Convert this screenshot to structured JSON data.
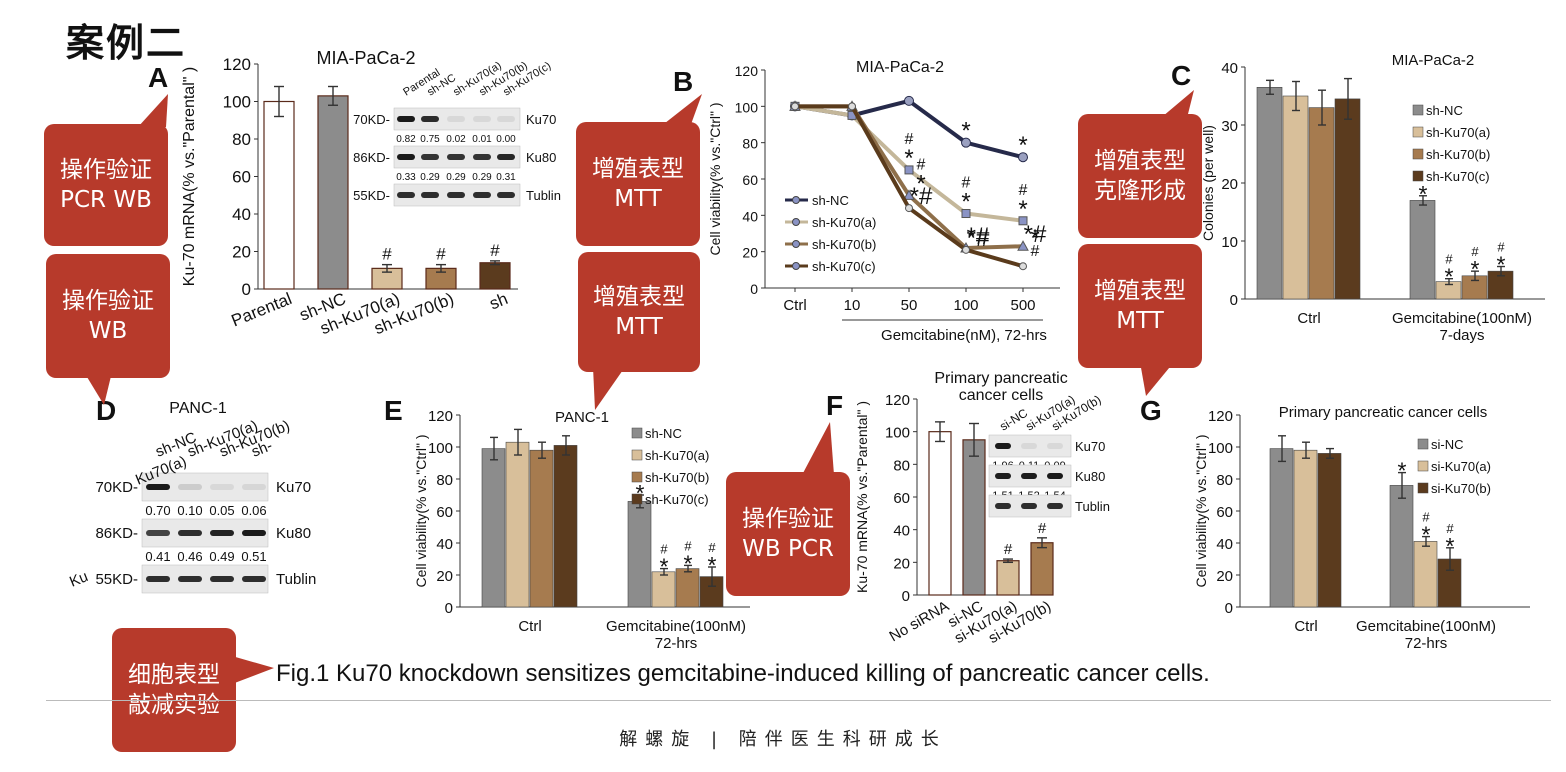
{
  "page_title": "案例二",
  "panel_letters": {
    "a": "A",
    "b": "B",
    "c": "C",
    "d": "D",
    "e": "E",
    "f": "F",
    "g": "G"
  },
  "caption": "Fig.1 Ku70 knockdown sensitizes gemcitabine-induced killing of pancreatic cancer cells.",
  "footer": "解螺旋 | 陪伴医生科研成长",
  "callouts": {
    "validate_pcr_wb": [
      "操作验证",
      "PCR WB"
    ],
    "validate_wb": [
      "操作验证",
      "WB"
    ],
    "prolif_mtt_1": [
      "增殖表型",
      "MTT"
    ],
    "prolif_mtt_2": [
      "增殖表型",
      "MTT"
    ],
    "prolif_colony": [
      "增殖表型",
      "克隆形成"
    ],
    "prolif_mtt_3": [
      "增殖表型",
      "MTT"
    ],
    "validate_wb_pcr": [
      "操作验证",
      "WB PCR"
    ],
    "knockdown": [
      "细胞表型",
      "敲减实验"
    ]
  },
  "colors": {
    "accent": "#b73a2b",
    "parental": "#ffffff",
    "shNC": "#8c8c8c",
    "a": "#d8bf9a",
    "b": "#a67b4f",
    "c": "#5b3b1e",
    "line_nc": "#262a4a",
    "line_a": "#c4b79a",
    "line_b": "#8e6f4a",
    "line_c": "#5a3b1c"
  },
  "wb_a": {
    "lanes": [
      "Parental",
      "sh-NC",
      "sh-Ku70(a)",
      "sh-Ku70(b)",
      "sh-Ku70(c)"
    ],
    "rows": [
      {
        "kd": "70KD-",
        "label": "Ku70",
        "values": [
          "0.82",
          "0.75",
          "0.02",
          "0.01",
          "0.00"
        ]
      },
      {
        "kd": "86KD-",
        "label": "Ku80",
        "values": [
          "0.33",
          "0.29",
          "0.29",
          "0.29",
          "0.31"
        ]
      },
      {
        "kd": "55KD-",
        "label": "Tublin",
        "values": []
      }
    ]
  },
  "wb_d": {
    "title": "PANC-1",
    "lanes": [
      "sh-NC",
      "sh-Ku70(a)",
      "sh-Ku70(b)",
      "sh-"
    ],
    "rows": [
      {
        "kd": "70KD-",
        "label": "Ku70",
        "values": [
          "0.70",
          "0.10",
          "0.05",
          "0.06"
        ]
      },
      {
        "kd": "86KD-",
        "label": "Ku80",
        "values": [
          "0.41",
          "0.46",
          "0.49",
          "0.51"
        ]
      },
      {
        "kd": "55KD-",
        "label": "Tublin",
        "values": []
      }
    ],
    "cut_labels": [
      "Ku70(a)",
      "Ku"
    ]
  },
  "wb_f": {
    "lanes": [
      "si-NC",
      "si-Ku70(a)",
      "si-Ku70(b)"
    ],
    "rows": [
      {
        "kd": "",
        "label": "Ku70",
        "values": [
          "1.96",
          "0.11",
          "0.09"
        ]
      },
      {
        "kd": "",
        "label": "Ku80",
        "values": [
          "1.51",
          "1.52",
          "1.54"
        ]
      },
      {
        "kd": "",
        "label": "Tublin",
        "values": []
      }
    ]
  },
  "chart_data": [
    {
      "id": "A",
      "type": "bar",
      "title": "MIA-PaCa-2",
      "ylabel": "Ku-70 mRNA(% vs.\"Parental\" )",
      "ylim": [
        0,
        120
      ],
      "yticks": [
        0,
        20,
        40,
        60,
        80,
        100,
        120
      ],
      "categories": [
        "Parental",
        "sh-NC",
        "sh-Ku70(a)",
        "sh-Ku70(b)",
        "sh"
      ],
      "values": [
        100,
        103,
        11,
        11,
        14
      ],
      "errors": [
        8,
        5,
        2,
        2,
        1
      ],
      "annotations": [
        "",
        "",
        "#",
        "#",
        "#"
      ]
    },
    {
      "id": "B",
      "type": "line",
      "title": "MIA-PaCa-2",
      "ylabel": "Cell viability(% vs.\"Ctrl\" )",
      "xlabel": "Gemcitabine(nM), 72-hrs",
      "ylim": [
        0,
        120
      ],
      "yticks": [
        0,
        20,
        40,
        60,
        80,
        100,
        120
      ],
      "x": [
        "Ctrl",
        "10",
        "50",
        "100",
        "500"
      ],
      "series": [
        {
          "name": "sh-NC",
          "values": [
            100,
            95,
            103,
            80,
            72
          ],
          "marks": [
            "",
            "",
            "",
            "*",
            "*"
          ]
        },
        {
          "name": "sh-Ku70(a)",
          "values": [
            100,
            95,
            65,
            41,
            37
          ],
          "marks": [
            "",
            "",
            "#\n*",
            "#\n*",
            "#\n*"
          ]
        },
        {
          "name": "sh-Ku70(b)",
          "values": [
            100,
            100,
            51,
            22,
            23
          ],
          "marks": [
            "",
            "",
            "#\n*",
            "*#",
            "*#"
          ]
        },
        {
          "name": "sh-Ku70(c)",
          "values": [
            100,
            100,
            44,
            21,
            12
          ],
          "marks": [
            "",
            "",
            "*#",
            "*#",
            "*\n#"
          ]
        }
      ]
    },
    {
      "id": "C",
      "type": "bar",
      "title": "MIA-PaCa-2",
      "ylabel": "Colonies (per well)",
      "ylim": [
        0,
        40
      ],
      "yticks": [
        0,
        10,
        20,
        30,
        40
      ],
      "categories": [
        "Ctrl",
        "Gemcitabine(100nM)\n7-days"
      ],
      "series": [
        {
          "name": "sh-NC",
          "values": [
            36.5,
            17
          ],
          "errors": [
            1.2,
            0.8
          ],
          "marks": [
            "",
            "*"
          ]
        },
        {
          "name": "sh-Ku70(a)",
          "values": [
            35,
            3
          ],
          "errors": [
            2.5,
            0.5
          ],
          "marks": [
            "",
            "#\n*"
          ]
        },
        {
          "name": "sh-Ku70(b)",
          "values": [
            33,
            4
          ],
          "errors": [
            3,
            0.8
          ],
          "marks": [
            "",
            "#\n*"
          ]
        },
        {
          "name": "sh-Ku70(c)",
          "values": [
            34.5,
            4.8
          ],
          "errors": [
            3.5,
            0.8
          ],
          "marks": [
            "",
            "#\n*"
          ]
        }
      ]
    },
    {
      "id": "E",
      "type": "bar",
      "title": "PANC-1",
      "ylabel": "Cell viability(% vs.\"Ctrl\" )",
      "ylim": [
        0,
        120
      ],
      "yticks": [
        0,
        20,
        40,
        60,
        80,
        100,
        120
      ],
      "categories": [
        "Ctrl",
        "Gemcitabine(100nM)\n72-hrs"
      ],
      "series": [
        {
          "name": "sh-NC",
          "values": [
            99,
            66
          ],
          "errors": [
            7,
            4
          ],
          "marks": [
            "",
            "*"
          ]
        },
        {
          "name": "sh-Ku70(a)",
          "values": [
            103,
            22
          ],
          "errors": [
            8,
            2
          ],
          "marks": [
            "",
            "#\n*"
          ]
        },
        {
          "name": "sh-Ku70(b)",
          "values": [
            98,
            24
          ],
          "errors": [
            5,
            2
          ],
          "marks": [
            "",
            "#\n*"
          ]
        },
        {
          "name": "sh-Ku70(c)",
          "values": [
            101,
            19
          ],
          "errors": [
            6,
            6
          ],
          "marks": [
            "",
            "#\n*"
          ]
        }
      ]
    },
    {
      "id": "F",
      "type": "bar",
      "title": "Primary pancreatic\ncancer cells",
      "ylabel": "Ku-70 mRNA(% vs.\"Parental\" )",
      "ylim": [
        0,
        120
      ],
      "yticks": [
        0,
        20,
        40,
        60,
        80,
        100,
        120
      ],
      "categories": [
        "No siRNA",
        "si-NC",
        "si-Ku70(a)",
        "si-Ku70(b)"
      ],
      "values": [
        100,
        95,
        21,
        32
      ],
      "errors": [
        6,
        10,
        1,
        3
      ],
      "annotations": [
        "",
        "",
        "#",
        "#"
      ]
    },
    {
      "id": "G",
      "type": "bar",
      "title": "Primary pancreatic cancer cells",
      "ylabel": "Cell viability(% vs.\"Ctrl\" )",
      "ylim": [
        0,
        120
      ],
      "yticks": [
        0,
        20,
        40,
        60,
        80,
        100,
        120
      ],
      "categories": [
        "Ctrl",
        "Gemcitabine(100nM)\n72-hrs"
      ],
      "series": [
        {
          "name": "si-NC",
          "values": [
            99,
            76
          ],
          "errors": [
            8,
            8
          ],
          "marks": [
            "",
            "*"
          ]
        },
        {
          "name": "si-Ku70(a)",
          "values": [
            98,
            41
          ],
          "errors": [
            5,
            3
          ],
          "marks": [
            "",
            "#\n*"
          ]
        },
        {
          "name": "si-Ku70(b)",
          "values": [
            96,
            30
          ],
          "errors": [
            3,
            7
          ],
          "marks": [
            "",
            "#\n*"
          ]
        }
      ]
    }
  ]
}
